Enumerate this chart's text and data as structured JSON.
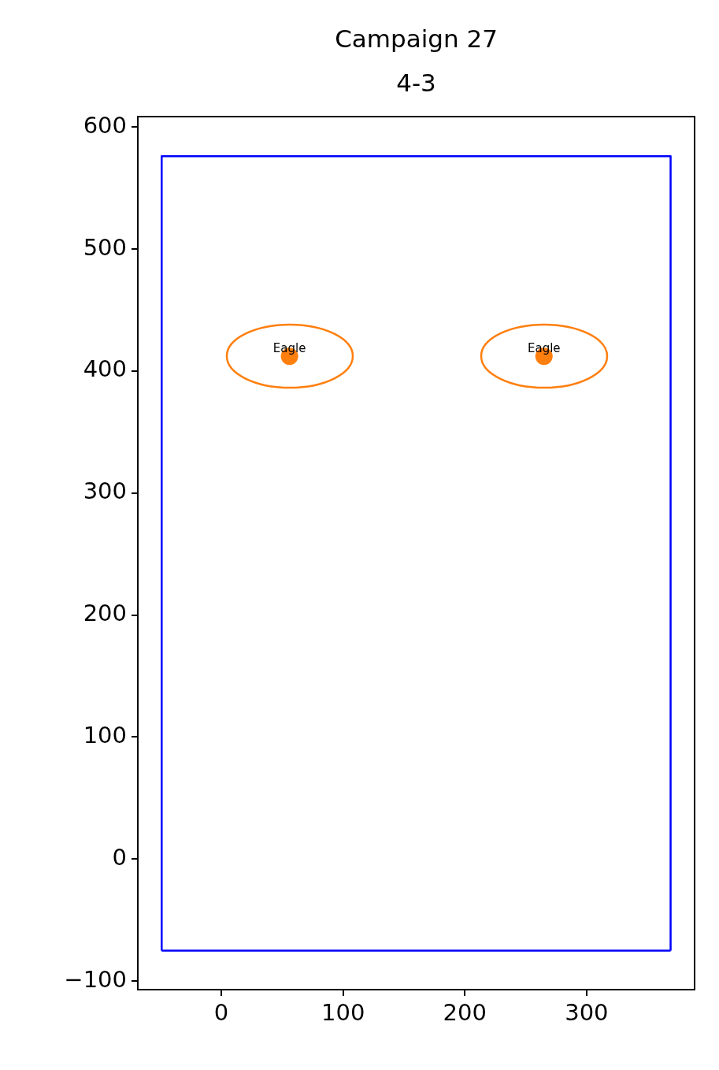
{
  "chart_data": {
    "type": "scatter",
    "title": "Campaign 27",
    "subtitle": "4-3",
    "xlim": [
      -68.6,
      388.7
    ],
    "ylim": [
      -107,
      608.5
    ],
    "xticks": [
      0,
      100,
      200,
      300
    ],
    "yticks": [
      -100,
      0,
      100,
      200,
      300,
      400,
      500,
      600
    ],
    "grid": false,
    "legend": false,
    "marker": "circle",
    "series": [
      {
        "type": "line",
        "color": "#0000ff",
        "marker": "none",
        "x": [
          -49,
          -49,
          369,
          369
        ],
        "values": [
          -75,
          576,
          576,
          -75
        ]
      },
      {
        "type": "line",
        "color": "#0000ff",
        "marker": "none",
        "x": [
          -49,
          369
        ],
        "values": [
          -75,
          -75
        ]
      },
      {
        "color": "#ff7f0e",
        "x": [
          56,
          265
        ],
        "values": [
          412,
          412
        ]
      }
    ],
    "annotations": [
      {
        "text": "Eagle",
        "x": 56,
        "y": 412
      },
      {
        "text": "Eagle",
        "x": 265,
        "y": 412
      }
    ]
  }
}
